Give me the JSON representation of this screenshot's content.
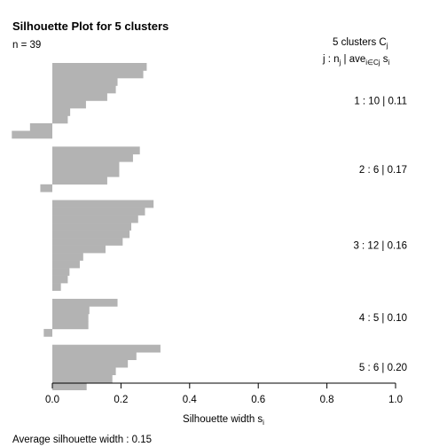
{
  "chart_data": {
    "type": "bar",
    "orientation": "horizontal",
    "title": "Silhouette Plot for 5 clusters",
    "n_label": "n = 39",
    "xlabel": "Silhouette width s",
    "xlabel_sub": "i",
    "xlim": [
      0,
      1
    ],
    "x_ticks": [
      "0.0",
      "0.2",
      "0.4",
      "0.6",
      "0.8",
      "1.0"
    ],
    "footer": "Average silhouette width :  0.15",
    "legend_header": {
      "line1_main": "5  clusters  C",
      "line1_sub": "j",
      "line2_a": "j :  n",
      "line2_a_sub": "j",
      "line2_b": " | ave",
      "line2_b_sub": "i∈Cj",
      "line2_c": "  s",
      "line2_c_sub": "i"
    },
    "clusters": [
      {
        "label": "1 :   10  |  0.11",
        "values": [
          0.275,
          0.265,
          0.19,
          0.185,
          0.16,
          0.098,
          0.052,
          0.045,
          -0.065,
          -0.118
        ]
      },
      {
        "label": "2 :   6  |  0.17",
        "values": [
          0.255,
          0.235,
          0.195,
          0.195,
          0.16,
          -0.035
        ]
      },
      {
        "label": "3 :   12  |  0.16",
        "values": [
          0.295,
          0.27,
          0.25,
          0.23,
          0.225,
          0.205,
          0.155,
          0.09,
          0.08,
          0.05,
          0.045,
          0.025
        ]
      },
      {
        "label": "4 :   5  |  0.10",
        "values": [
          0.19,
          0.108,
          0.105,
          0.105,
          -0.025
        ]
      },
      {
        "label": "5 :   6  |  0.20",
        "values": [
          0.315,
          0.245,
          0.22,
          0.185,
          0.175,
          0.1
        ]
      }
    ],
    "bar_color": "#b3b3b3",
    "grid": false
  }
}
